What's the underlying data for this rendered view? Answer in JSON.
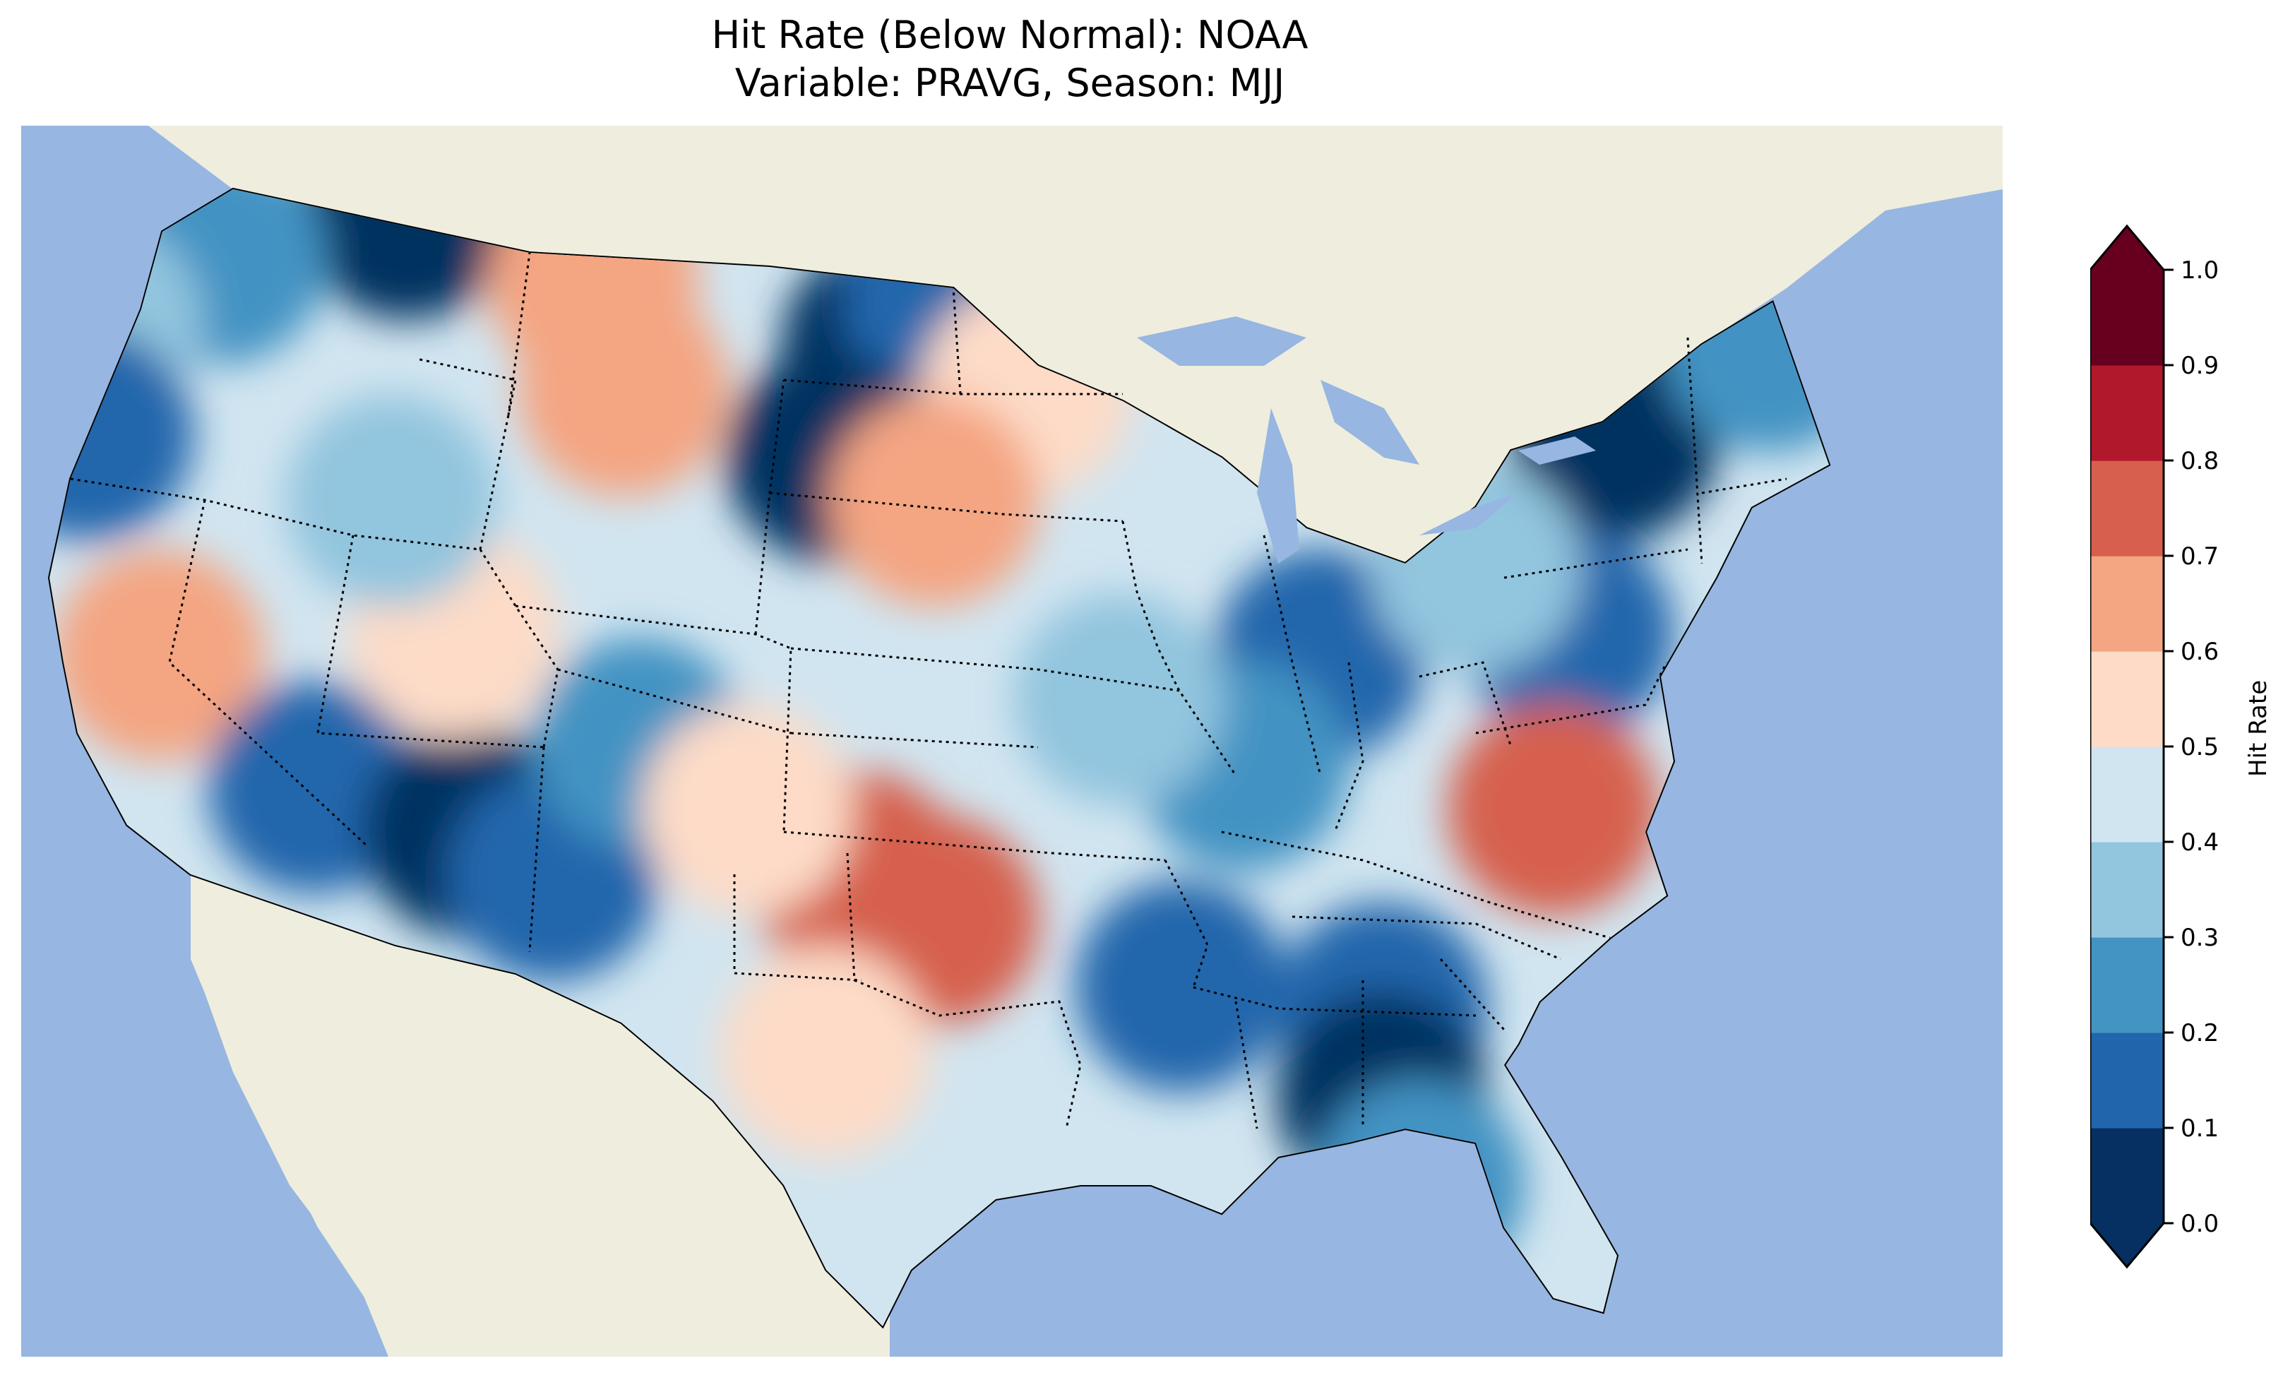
{
  "title_line1": "Hit Rate (Below Normal): NOAA",
  "title_line2": "Variable: PRAVG, Season: MJJ",
  "map": {
    "region": "Contiguous United States",
    "background": {
      "ocean": "#97b6e1",
      "land": "#efedde"
    },
    "patches": [
      {
        "lat": 48.5,
        "lon": -113.5,
        "value": 0.05
      },
      {
        "lat": 47.5,
        "lon": -119.5,
        "value": 0.25
      },
      {
        "lat": 46.0,
        "lon": -123.5,
        "value": 0.35
      },
      {
        "lat": 43.5,
        "lon": -123.8,
        "value": 0.15
      },
      {
        "lat": 47.0,
        "lon": -107.5,
        "value": 0.65
      },
      {
        "lat": 44.5,
        "lon": -106.5,
        "value": 0.6
      },
      {
        "lat": 45.5,
        "lon": -98.0,
        "value": 0.05
      },
      {
        "lat": 46.5,
        "lon": -96.0,
        "value": 0.1
      },
      {
        "lat": 43.0,
        "lon": -99.8,
        "value": 0.05
      },
      {
        "lat": 44.5,
        "lon": -93.5,
        "value": 0.55
      },
      {
        "lat": 42.0,
        "lon": -96.5,
        "value": 0.6
      },
      {
        "lat": 38.5,
        "lon": -121.5,
        "value": 0.65
      },
      {
        "lat": 35.5,
        "lon": -116.5,
        "value": 0.15
      },
      {
        "lat": 34.5,
        "lon": -111.5,
        "value": 0.05
      },
      {
        "lat": 33.5,
        "lon": -108.8,
        "value": 0.12
      },
      {
        "lat": 36.5,
        "lon": -106.0,
        "value": 0.25
      },
      {
        "lat": 33.5,
        "lon": -99.0,
        "value": 0.7
      },
      {
        "lat": 32.5,
        "lon": -96.5,
        "value": 0.7
      },
      {
        "lat": 35.0,
        "lon": -102.5,
        "value": 0.55
      },
      {
        "lat": 29.5,
        "lon": -100.0,
        "value": 0.55
      },
      {
        "lat": 38.5,
        "lon": -84.0,
        "value": 0.15
      },
      {
        "lat": 36.0,
        "lon": -86.5,
        "value": 0.2
      },
      {
        "lat": 31.0,
        "lon": -88.5,
        "value": 0.15
      },
      {
        "lat": 30.5,
        "lon": -82.0,
        "value": 0.12
      },
      {
        "lat": 28.5,
        "lon": -82.0,
        "value": 0.05
      },
      {
        "lat": 26.5,
        "lon": -80.8,
        "value": 0.25
      },
      {
        "lat": 43.5,
        "lon": -74.5,
        "value": 0.05
      },
      {
        "lat": 46.5,
        "lon": -69.0,
        "value": 0.15
      },
      {
        "lat": 45.5,
        "lon": -69.5,
        "value": 0.25
      },
      {
        "lat": 39.0,
        "lon": -76.0,
        "value": 0.15
      },
      {
        "lat": 35.0,
        "lon": -76.5,
        "value": 0.7
      },
      {
        "lat": 40.5,
        "lon": -79.0,
        "value": 0.3
      },
      {
        "lat": 37.5,
        "lon": -90.5,
        "value": 0.3
      },
      {
        "lat": 39.0,
        "lon": -112.0,
        "value": 0.55
      },
      {
        "lat": 42.0,
        "lon": -114.0,
        "value": 0.35
      }
    ]
  },
  "colorbar": {
    "label": "Hit Rate",
    "ticks": [
      "0.0",
      "0.1",
      "0.2",
      "0.3",
      "0.4",
      "0.5",
      "0.6",
      "0.7",
      "0.8",
      "0.9",
      "1.0"
    ],
    "colors": [
      "#053061",
      "#2166ac",
      "#4393c3",
      "#92c5de",
      "#d1e5f0",
      "#fddbc7",
      "#f4a582",
      "#d6604d",
      "#b2182b",
      "#67001f"
    ],
    "extend_colors": {
      "under": "#053061",
      "over": "#67001f"
    }
  }
}
